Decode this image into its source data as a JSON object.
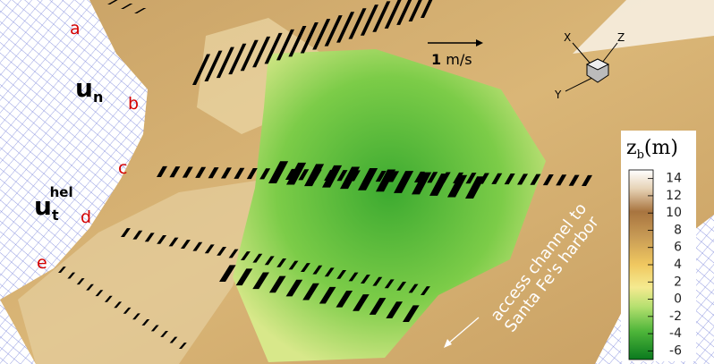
{
  "points": [
    "a",
    "b",
    "c",
    "d",
    "e"
  ],
  "vectors": {
    "normal": {
      "base": "u",
      "sub": "n"
    },
    "tangential": {
      "base": "u",
      "sub": "t",
      "sup": "hel"
    }
  },
  "scale_arrow": {
    "value": 1,
    "unit": "m/s"
  },
  "axes": {
    "x": "X",
    "y": "Y",
    "z": "Z"
  },
  "colorbar": {
    "title": {
      "base": "z",
      "sub": "b",
      "unit": "(m)"
    },
    "range": [
      -7,
      15
    ],
    "ticks": [
      14,
      12,
      10,
      8,
      6,
      4,
      2,
      0,
      -2,
      -4,
      -6
    ]
  },
  "annotation": [
    "access channel to",
    "Santa Fe's harbor"
  ]
}
